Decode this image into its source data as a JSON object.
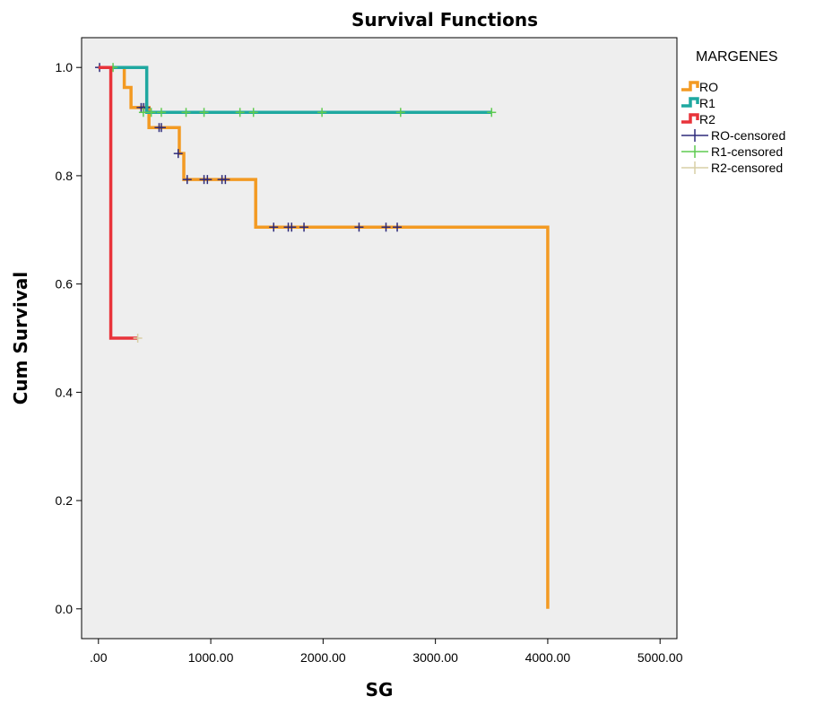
{
  "chart_data": {
    "type": "line",
    "title": "Survival Functions",
    "xlabel": "SG",
    "ylabel": "Cum Survival",
    "xlim": [
      -150,
      5150
    ],
    "ylim": [
      -0.055,
      1.055
    ],
    "xticks": [
      0,
      1000,
      2000,
      3000,
      4000,
      5000
    ],
    "xtick_labels": [
      ".00",
      "1000.00",
      "2000.00",
      "3000.00",
      "4000.00",
      "5000.00"
    ],
    "yticks": [
      0.0,
      0.2,
      0.4,
      0.6,
      0.8,
      1.0
    ],
    "ytick_labels": [
      "0.0",
      "0.2",
      "0.4",
      "0.6",
      "0.8",
      "1.0"
    ],
    "grid": false,
    "plot_background": "#eeeeee",
    "legend": {
      "title": "MARGENES",
      "placement": "right"
    },
    "series": [
      {
        "name": "RO",
        "color": "#f39a22",
        "steps": [
          [
            0,
            1.0
          ],
          [
            230,
            0.963
          ],
          [
            290,
            0.926
          ],
          [
            450,
            0.889
          ],
          [
            720,
            0.841
          ],
          [
            760,
            0.793
          ],
          [
            1400,
            0.705
          ],
          [
            4000,
            0.0
          ]
        ],
        "censored_name": "RO-censored",
        "censored_color": "#2d2a7a",
        "censored": [
          [
            10,
            1.0
          ],
          [
            380,
            0.926
          ],
          [
            400,
            0.926
          ],
          [
            420,
            0.926
          ],
          [
            540,
            0.889
          ],
          [
            560,
            0.889
          ],
          [
            710,
            0.841
          ],
          [
            790,
            0.793
          ],
          [
            940,
            0.793
          ],
          [
            970,
            0.793
          ],
          [
            1100,
            0.793
          ],
          [
            1130,
            0.793
          ],
          [
            1560,
            0.705
          ],
          [
            1690,
            0.705
          ],
          [
            1720,
            0.705
          ],
          [
            1830,
            0.705
          ],
          [
            2320,
            0.705
          ],
          [
            2560,
            0.705
          ],
          [
            2660,
            0.705
          ]
        ]
      },
      {
        "name": "R1",
        "color": "#1fa8a0",
        "steps": [
          [
            0,
            1.0
          ],
          [
            430,
            0.917
          ]
        ],
        "end_x": 3500,
        "censored_name": "R1-censored",
        "censored_color": "#5ecb50",
        "censored": [
          [
            130,
            1.0
          ],
          [
            400,
            0.917
          ],
          [
            470,
            0.917
          ],
          [
            560,
            0.917
          ],
          [
            780,
            0.917
          ],
          [
            940,
            0.917
          ],
          [
            1260,
            0.917
          ],
          [
            1380,
            0.917
          ],
          [
            1990,
            0.917
          ],
          [
            2690,
            0.917
          ],
          [
            3500,
            0.917
          ]
        ]
      },
      {
        "name": "R2",
        "color": "#e8333a",
        "steps": [
          [
            0,
            1.0
          ],
          [
            110,
            0.5
          ]
        ],
        "end_x": 350,
        "censored_name": "R2-censored",
        "censored_color": "#d8cfa6",
        "censored": [
          [
            350,
            0.5
          ]
        ]
      }
    ]
  }
}
